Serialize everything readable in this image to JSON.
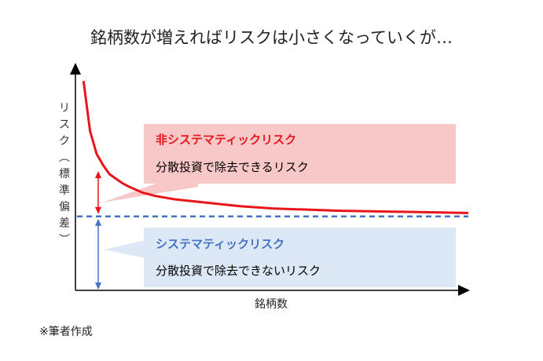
{
  "title": "銘柄数が増えればリスクは小さくなっていくが…",
  "note": "※筆者作成",
  "chart_data": {
    "type": "line",
    "xlabel": "銘柄数",
    "ylabel": "リスク（標準偏差）",
    "ylabel_chars": [
      "リ",
      "ス",
      "ク",
      "︵",
      "標",
      "準",
      "偏",
      "差",
      "︶"
    ],
    "x": [
      1,
      2,
      3,
      4,
      5,
      6,
      7,
      8,
      10,
      12,
      15,
      20,
      25,
      30,
      40,
      50,
      60
    ],
    "xlim": [
      0,
      60
    ],
    "ylim": [
      0,
      1
    ],
    "series": [
      {
        "values": [
          0.92,
          0.7,
          0.6,
          0.55,
          0.51,
          0.49,
          0.47,
          0.455,
          0.43,
          0.415,
          0.4,
          0.385,
          0.37,
          0.36,
          0.35,
          0.345,
          0.34
        ]
      }
    ],
    "systematic_level": 0.325,
    "colors": {
      "curve": "#e8151b",
      "dashed": "#4472c4",
      "red_arrow": "#e8151b",
      "blue_arrow": "#4472c4",
      "pink_box": "#f8c8c8",
      "blue_box": "#dce8f5"
    },
    "annotations": {
      "nonsystematic": {
        "title": "非システマティックリスク",
        "subtitle": "分散投資で除去できるリスク",
        "title_color": "#e8151b"
      },
      "systematic": {
        "title": "システマティックリスク",
        "subtitle": "分散投資で除去できないリスク",
        "title_color": "#4472c4"
      }
    }
  }
}
